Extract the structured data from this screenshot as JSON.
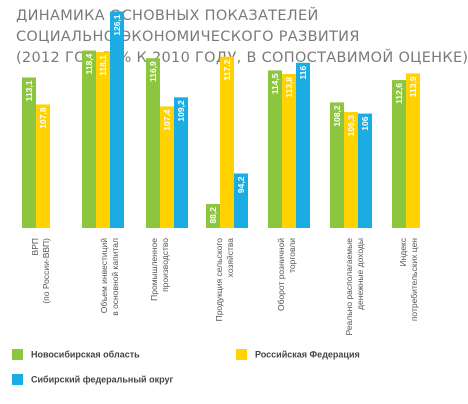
{
  "title_lines": [
    "Динамика основных показателей",
    "социально-экономического развития",
    "(2012 год в % к 2010 году, в сопоставимой оценке)"
  ],
  "colors": {
    "nso": "#8cc63f",
    "rf": "#ffd200",
    "sfo": "#1aace3"
  },
  "chart_data": {
    "type": "bar",
    "categories": [
      [
        "ВРП",
        "(по России-ВВП)"
      ],
      [
        "Объем инвестиций",
        "в основной капитал"
      ],
      [
        "Промышленное",
        "производство"
      ],
      [
        "Продукция сельского",
        "хозяйства"
      ],
      [
        "Оборот розничной",
        "торговли"
      ],
      [
        "Реально располагаемые",
        "денежные доходы"
      ],
      [
        "Индекс",
        "потребительских цен"
      ]
    ],
    "series": [
      {
        "name": "Новосибирская область",
        "values": [
          113.1,
          118.4,
          116.9,
          88.2,
          114.5,
          108.2,
          112.6
        ],
        "labels": [
          "113,1",
          "118,4",
          "116,9",
          "88,2",
          "114,5",
          "108,2",
          "112,6"
        ]
      },
      {
        "name": "Российская Федерация",
        "values": [
          107.8,
          118.1,
          107.4,
          117.2,
          113.8,
          106.3,
          113.9
        ],
        "labels": [
          "107,8",
          "118,1",
          "107,4",
          "117,2",
          "113,8",
          "106,3",
          "113,9"
        ]
      },
      {
        "name": "Сибирский федеральный округ",
        "values": [
          null,
          126.1,
          109.2,
          94.2,
          116,
          106,
          null
        ],
        "labels": [
          null,
          "126,1",
          "109,2",
          "94,2",
          "116",
          "106",
          null
        ]
      }
    ],
    "legend": "bottom"
  }
}
